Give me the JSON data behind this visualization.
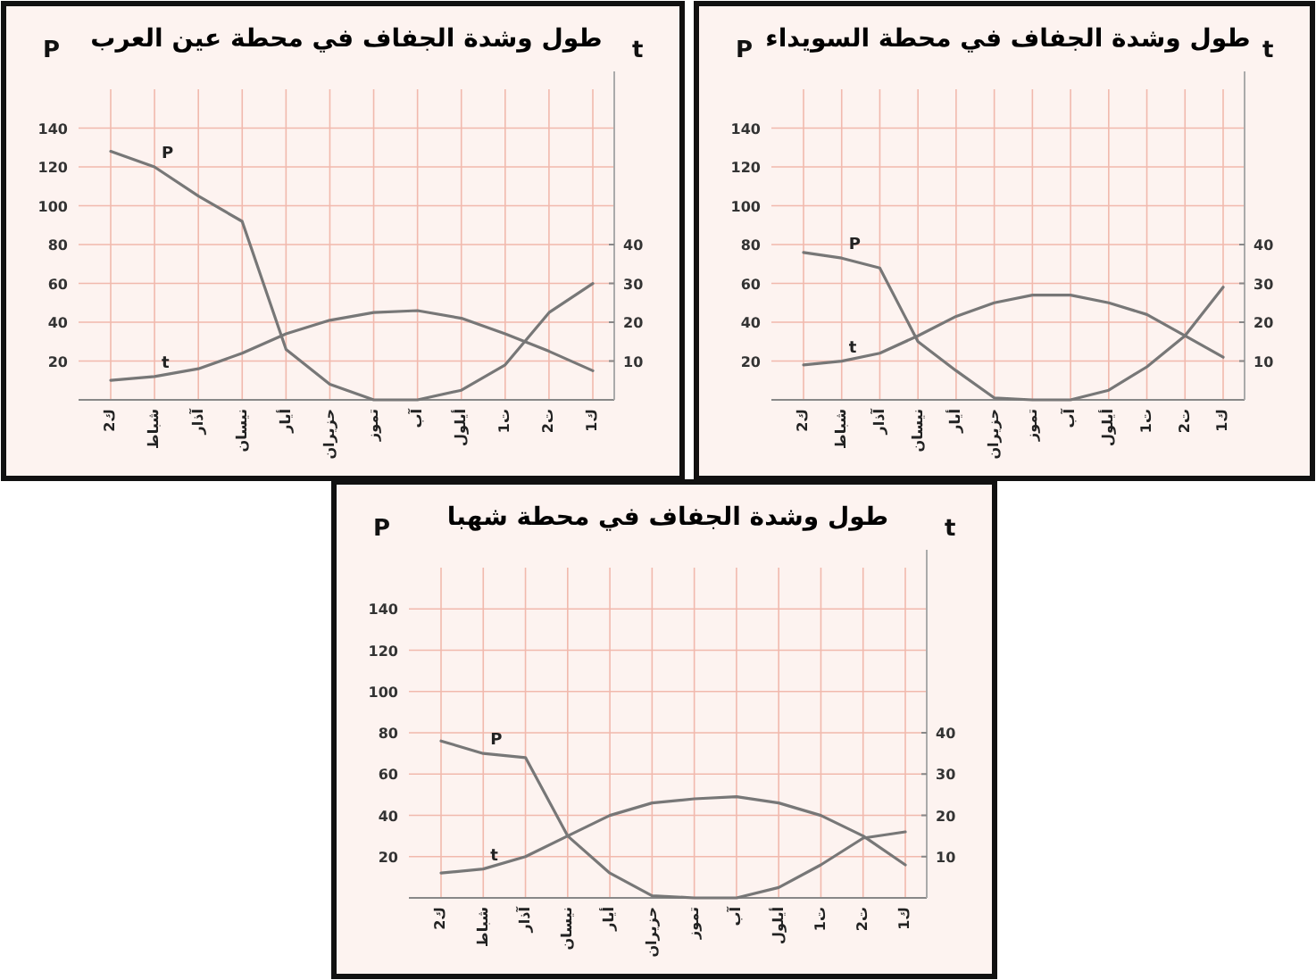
{
  "chart_data": [
    {
      "type": "line",
      "title": "طول وشدة الجفاف في محطة عين العرب",
      "ylabel": "P",
      "y2label": "t",
      "categories": [
        "ك2",
        "شباط",
        "آذار",
        "نيسان",
        "أيار",
        "حزيران",
        "تموز",
        "آب",
        "أيلول",
        "ت1",
        "ت2",
        "ك1"
      ],
      "series": [
        {
          "name": "P",
          "color": "#777777",
          "values": [
            128,
            120,
            105,
            92,
            26,
            8,
            0,
            0,
            5,
            18,
            45,
            60
          ]
        },
        {
          "name": "t",
          "axis": "y2",
          "color": "#777777",
          "values": [
            5,
            6,
            8,
            12,
            17,
            20.5,
            22.5,
            23,
            21,
            17,
            12.5,
            7.5
          ]
        }
      ],
      "ylim": [
        0,
        160
      ],
      "yticks": [
        20,
        40,
        60,
        80,
        100,
        120,
        140
      ],
      "y2lim": [
        0,
        80
      ],
      "y2ticks": [
        10,
        20,
        30,
        40
      ],
      "grid": true
    },
    {
      "type": "line",
      "title": "طول وشدة الجفاف في محطة السويداء",
      "ylabel": "P",
      "y2label": "t",
      "categories": [
        "ك2",
        "شباط",
        "آذار",
        "نيسان",
        "أيار",
        "حزيران",
        "تموز",
        "آب",
        "أيلول",
        "ت1",
        "ت2",
        "ك1"
      ],
      "series": [
        {
          "name": "P",
          "color": "#777777",
          "values": [
            76,
            73,
            68,
            30,
            15,
            1,
            0,
            0,
            5,
            17,
            33,
            58
          ]
        },
        {
          "name": "t",
          "axis": "y2",
          "color": "#777777",
          "values": [
            9,
            10,
            12,
            16.5,
            21.5,
            25,
            27,
            27,
            25,
            22,
            16.5,
            11
          ]
        }
      ],
      "ylim": [
        0,
        160
      ],
      "yticks": [
        20,
        40,
        60,
        80,
        100,
        120,
        140
      ],
      "y2lim": [
        0,
        80
      ],
      "y2ticks": [
        10,
        20,
        30,
        40
      ],
      "grid": true
    },
    {
      "type": "line",
      "title": "طول وشدة الجفاف في محطة شهبا",
      "ylabel": "P",
      "y2label": "t",
      "categories": [
        "ك2",
        "شباط",
        "آذار",
        "نيسان",
        "أيار",
        "حزيران",
        "تموز",
        "آب",
        "أيلول",
        "ت1",
        "ت2",
        "ك1"
      ],
      "series": [
        {
          "name": "P",
          "color": "#777777",
          "values": [
            76,
            70,
            68,
            30,
            12,
            1,
            0,
            0,
            5,
            16,
            29,
            32
          ]
        },
        {
          "name": "t",
          "axis": "y2",
          "color": "#777777",
          "values": [
            6,
            7,
            10,
            15,
            20,
            23,
            24,
            24.5,
            23,
            20,
            15,
            8
          ]
        }
      ],
      "ylim": [
        0,
        160
      ],
      "yticks": [
        20,
        40,
        60,
        80,
        100,
        120,
        140
      ],
      "y2lim": [
        0,
        80
      ],
      "y2ticks": [
        10,
        20,
        30,
        40
      ],
      "grid": true
    }
  ]
}
